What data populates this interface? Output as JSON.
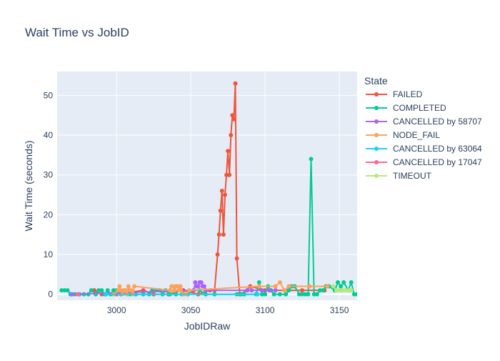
{
  "chart_data": {
    "type": "line",
    "title": "Wait Time vs JobID",
    "xlabel": "JobIDRaw",
    "ylabel": "Wait Time (seconds)",
    "xlim": [
      2960,
      3162
    ],
    "ylim": [
      -1.5,
      56
    ],
    "xticks": [
      3000,
      3050,
      3100,
      3150
    ],
    "yticks": [
      0,
      10,
      20,
      30,
      40,
      50
    ],
    "grid": true,
    "legend_title": "State",
    "legend_position": "right",
    "series": [
      {
        "name": "FAILED",
        "color": "#EF553B",
        "x": [
          2985,
          2990,
          3000,
          3018,
          3025,
          3035,
          3045,
          3055,
          3063,
          3066,
          3068,
          3069,
          3070,
          3071,
          3072,
          3073,
          3074,
          3075,
          3076,
          3077,
          3078,
          3079,
          3080,
          3081,
          3083,
          3088,
          3090,
          3100,
          3125,
          3140
        ],
        "y": [
          1,
          0,
          0,
          1,
          0,
          0,
          1,
          0,
          1,
          1,
          10,
          15,
          21,
          26,
          15,
          25,
          30,
          36,
          30,
          40,
          45,
          44,
          53,
          9,
          0,
          1,
          2,
          1,
          1,
          1
        ]
      },
      {
        "name": "COMPLETED",
        "color": "#00CC96",
        "x": [
          2963,
          2965,
          2967,
          2969,
          2972,
          2975,
          2978,
          2981,
          2983,
          2986,
          2988,
          2990,
          2992,
          2994,
          2996,
          2998,
          3000,
          3003,
          3006,
          3009,
          3013,
          3018,
          3022,
          3024,
          3027,
          3029,
          3031,
          3033,
          3036,
          3040,
          3044,
          3048,
          3052,
          3056,
          3060,
          3066,
          3081,
          3084,
          3086,
          3094,
          3096,
          3098,
          3100,
          3102,
          3104,
          3106,
          3110,
          3114,
          3116,
          3118,
          3120,
          3123,
          3125,
          3127,
          3129,
          3131,
          3133,
          3135,
          3137,
          3139,
          3141,
          3143,
          3147,
          3149,
          3151,
          3153,
          3156,
          3158,
          3160,
          3162
        ],
        "y": [
          1,
          1,
          1,
          0,
          0,
          0,
          0,
          0,
          1,
          0,
          1,
          1,
          0,
          1,
          0,
          1,
          1,
          0,
          1,
          0,
          0,
          0,
          0,
          1,
          1,
          1,
          0,
          1,
          0,
          0,
          0,
          0,
          1,
          1,
          0,
          0,
          0,
          0,
          0,
          0,
          3,
          0,
          0,
          2,
          1,
          0,
          0,
          0,
          1,
          2,
          2,
          0,
          0,
          0,
          0,
          34,
          0,
          0,
          1,
          1,
          2,
          2,
          1,
          3,
          2,
          3,
          1,
          3,
          0,
          0
        ]
      },
      {
        "name": "CANCELLED by 58707",
        "color": "#AB63FA",
        "x": [
          2970,
          3052,
          3053,
          3054,
          3055,
          3056,
          3057,
          3058,
          3059,
          3060,
          3088,
          3091,
          3098,
          3103,
          3107
        ],
        "y": [
          0,
          1,
          3,
          2,
          2,
          3,
          3,
          2,
          2,
          1,
          1,
          1,
          1,
          1,
          1
        ]
      },
      {
        "name": "NODE_FAIL",
        "color": "#FFA15A",
        "x": [
          2998,
          3001,
          3002,
          3003,
          3004,
          3005,
          3006,
          3007,
          3008,
          3009,
          3010,
          3011,
          3012,
          3036,
          3037,
          3038,
          3039,
          3040,
          3041,
          3042,
          3043,
          3045,
          3047,
          3049,
          3096,
          3107,
          3110,
          3113,
          3116,
          3130,
          3142
        ],
        "y": [
          0,
          1,
          2,
          1,
          0,
          1,
          1,
          0,
          2,
          1,
          1,
          0,
          2,
          1,
          2,
          2,
          1,
          2,
          2,
          1,
          2,
          0,
          0,
          1,
          2,
          2,
          3,
          1,
          2,
          2,
          2
        ]
      },
      {
        "name": "CANCELLED by 63064",
        "color": "#19D3F3",
        "x": [
          2993,
          3095
        ],
        "y": [
          0,
          0
        ]
      },
      {
        "name": "CANCELLED by 17047",
        "color": "#FF6692",
        "x": [
          2974
        ],
        "y": [
          0
        ]
      },
      {
        "name": "TIMEOUT",
        "color": "#B6E880",
        "x": [
          3146,
          3148,
          3150,
          3152,
          3154,
          3156,
          3158
        ],
        "y": [
          2,
          1,
          1,
          1,
          1,
          1,
          1
        ]
      }
    ]
  }
}
